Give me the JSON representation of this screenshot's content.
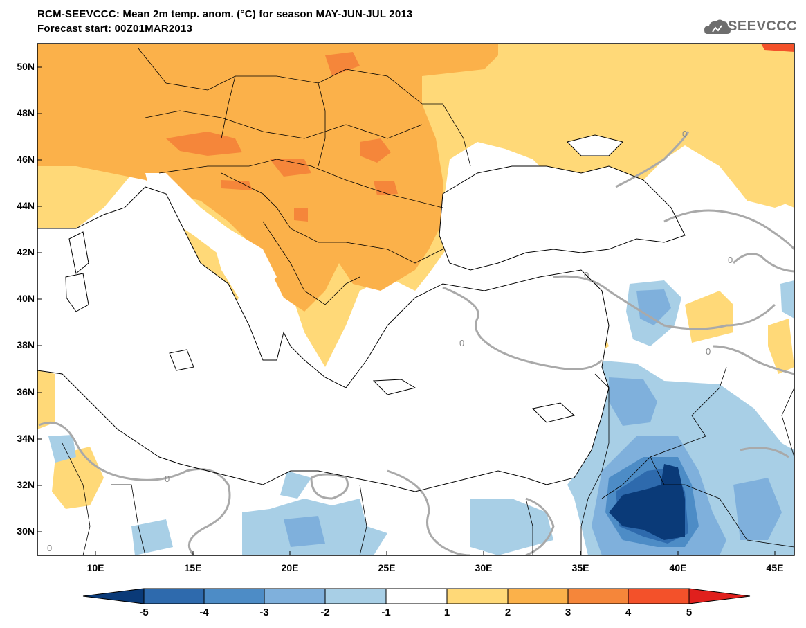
{
  "header": {
    "title_line1": "RCM-SEEVCCC: Mean 2m temp. anom. (°C) for season MAY-JUN-JUL 2013",
    "title_line2": "Forecast start: 00Z01MAR2013",
    "logo_text": "SEEVCCC"
  },
  "axes": {
    "lat_labels": [
      "50N",
      "48N",
      "46N",
      "44N",
      "42N",
      "40N",
      "38N",
      "36N",
      "34N",
      "32N",
      "30N"
    ],
    "lon_labels": [
      "10E",
      "15E",
      "20E",
      "25E",
      "30E",
      "35E",
      "40E",
      "45E"
    ],
    "lat_range": [
      29.0,
      51.0
    ],
    "lon_range": [
      7.0,
      46.0
    ]
  },
  "contour_label": "0",
  "colorbar": {
    "labels": [
      "-5",
      "-4",
      "-3",
      "-2",
      "-1",
      "1",
      "2",
      "3",
      "4",
      "5"
    ],
    "colors": [
      "#0a3a78",
      "#2e6aad",
      "#4d8cc6",
      "#7fb0dc",
      "#a8cfe6",
      "#ffffff",
      "#ffd978",
      "#fbb14a",
      "#f5863a",
      "#f3512a",
      "#e0201d"
    ]
  },
  "palette": {
    "anom_m4": "#0a3a78",
    "anom_m3": "#2e6aad",
    "anom_m2": "#7fb0dc",
    "anom_m1": "#a8cfe6",
    "anom_p1": "#ffd978",
    "anom_p2": "#fbb14a",
    "anom_p3": "#f5863a",
    "contour": "#a9a9a9",
    "coast": "#000000"
  }
}
